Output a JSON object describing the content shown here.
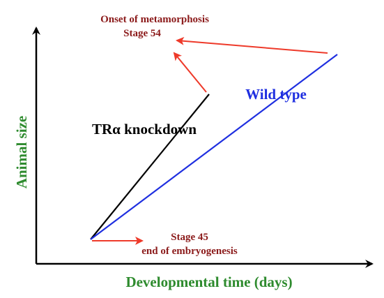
{
  "axes": {
    "x_label": "Developmental time (days)",
    "y_label": "Animal size"
  },
  "series": {
    "knockdown_label": "TRα knockdown",
    "wild_type_label": "Wild type"
  },
  "annotations": {
    "onset_line1": "Onset of metamorphosis",
    "onset_line2": "Stage 54",
    "stage45_line1": "Stage 45",
    "stage45_line2": "end of embryogenesis"
  },
  "colors": {
    "axis": "#000000",
    "axis_label": "#2e8b2e",
    "knockdown_line": "#000000",
    "wild_type_line": "#1f2fe0",
    "annotation_text": "#8b1a1a",
    "annotation_arrow": "#ee3a2a"
  }
}
